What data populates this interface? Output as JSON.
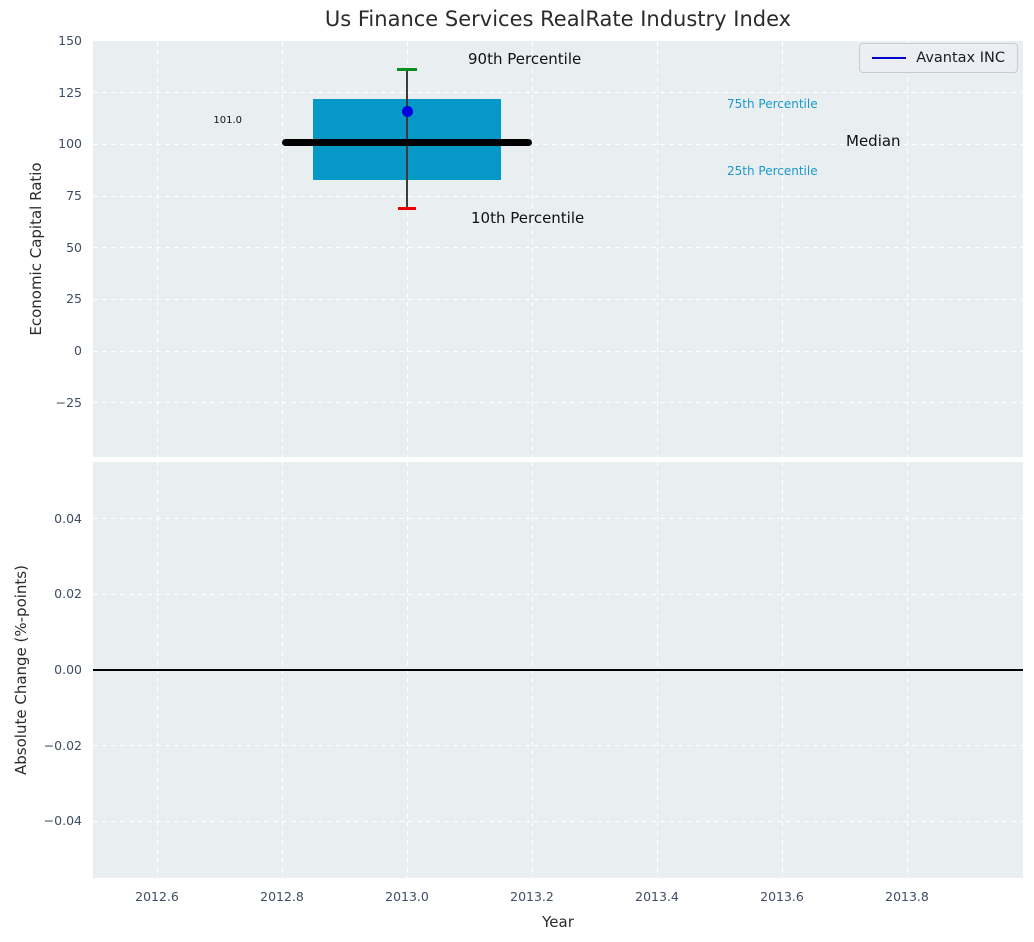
{
  "figure": {
    "title": "Us Finance Services RealRate Industry Index"
  },
  "colors": {
    "plot_bg": "#e9eef0",
    "grid": "#ffffff",
    "tick_text": "#3f4d63",
    "text": "#2b2b2b",
    "box_fill": "#0699c8",
    "percentile_text": "#1b99cb",
    "median_line": "#000000",
    "company_point": "#0000e0",
    "legend_line": "#0000cc",
    "cap_90": "#0b8e1f",
    "cap_10": "#e80000",
    "whisker": "#3a3a3a",
    "zero_line": "#000000"
  },
  "legend": {
    "label": "Avantax INC",
    "position": "upper right"
  },
  "chart_data": [
    {
      "type": "boxplot",
      "title": "Us Finance Services RealRate Industry Index",
      "ylabel": "Economic Capital Ratio",
      "xlim": [
        2012.4976,
        2013.9856
      ],
      "ylim": [
        -51.2,
        150
      ],
      "grid": "white-dashed",
      "legend_entries": [
        {
          "label": "Avantax INC",
          "color": "#0000cc"
        }
      ],
      "yticks": {
        "values": [
          150,
          125,
          100,
          75,
          50,
          25,
          0,
          -25
        ],
        "labels": [
          "150",
          "125",
          "100",
          "75",
          "50",
          "25",
          "0",
          "−25"
        ]
      },
      "box": {
        "x": 2013.0,
        "box_width_years": 0.3,
        "median_width_years": 0.4,
        "p10": 69,
        "p25": 83,
        "median": 101.0,
        "p75": 122,
        "p90": 136,
        "company_value": 116,
        "median_label": "101.0"
      },
      "annotations": {
        "p90": "90th Percentile",
        "p10": "10th Percentile",
        "p75": "75th Percentile",
        "p25": "25th Percentile",
        "median": "Median"
      }
    },
    {
      "type": "line",
      "ylabel": "Absolute Change (%-points)",
      "xlabel": "Year",
      "xlim": [
        2012.4976,
        2013.9856
      ],
      "ylim": [
        -0.055,
        0.055
      ],
      "grid": "white-dashed",
      "zero_line": 0.0,
      "series": [],
      "yticks": {
        "values": [
          0.04,
          0.02,
          0,
          -0.02,
          -0.04
        ],
        "labels": [
          "0.04",
          "0.02",
          "0.00",
          "−0.02",
          "−0.04"
        ]
      },
      "xticks": {
        "values": [
          2012.6,
          2012.8,
          2013.0,
          2013.2,
          2013.4,
          2013.6,
          2013.8
        ],
        "labels": [
          "2012.6",
          "2012.8",
          "2013.0",
          "2013.2",
          "2013.4",
          "2013.6",
          "2013.8"
        ]
      }
    }
  ]
}
